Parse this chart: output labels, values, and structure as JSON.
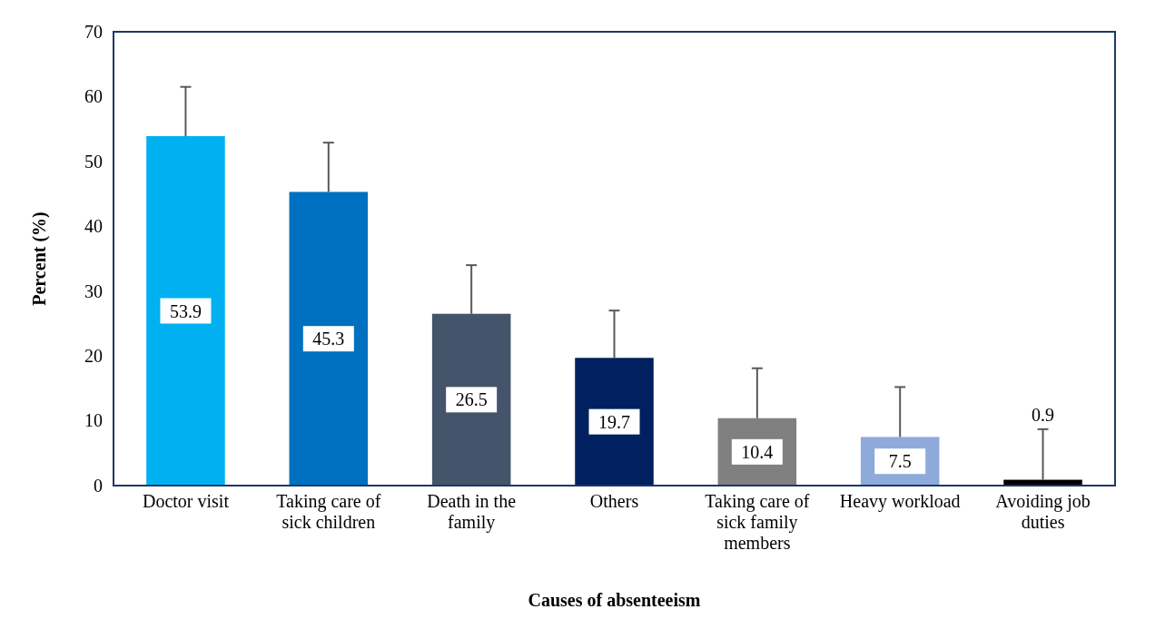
{
  "chart_data": {
    "type": "bar",
    "xlabel": "Causes of absenteeism",
    "ylabel": "Percent (%)",
    "categories": [
      "Doctor visit",
      "Taking care of sick children",
      "Death in the family",
      "Others",
      "Taking care of sick family members",
      "Heavy workload",
      "Avoiding job duties"
    ],
    "values": [
      53.9,
      45.3,
      26.5,
      19.7,
      10.4,
      7.5,
      0.9
    ],
    "colors": [
      "#00b0f0",
      "#0070c0",
      "#44546a",
      "#002060",
      "#808080",
      "#8eaadb",
      "#000000"
    ],
    "errors": [
      [
        53.9,
        61.5
      ],
      [
        45.3,
        52.9
      ],
      [
        26.5,
        34.0
      ],
      [
        19.7,
        27.0
      ],
      [
        10.4,
        18.1
      ],
      [
        7.5,
        15.2
      ],
      [
        0.9,
        8.7
      ]
    ],
    "ylim": [
      0,
      70
    ],
    "yticks": [
      0,
      10,
      20,
      30,
      40,
      50,
      60,
      70
    ],
    "grid": false,
    "data_labels": true
  }
}
